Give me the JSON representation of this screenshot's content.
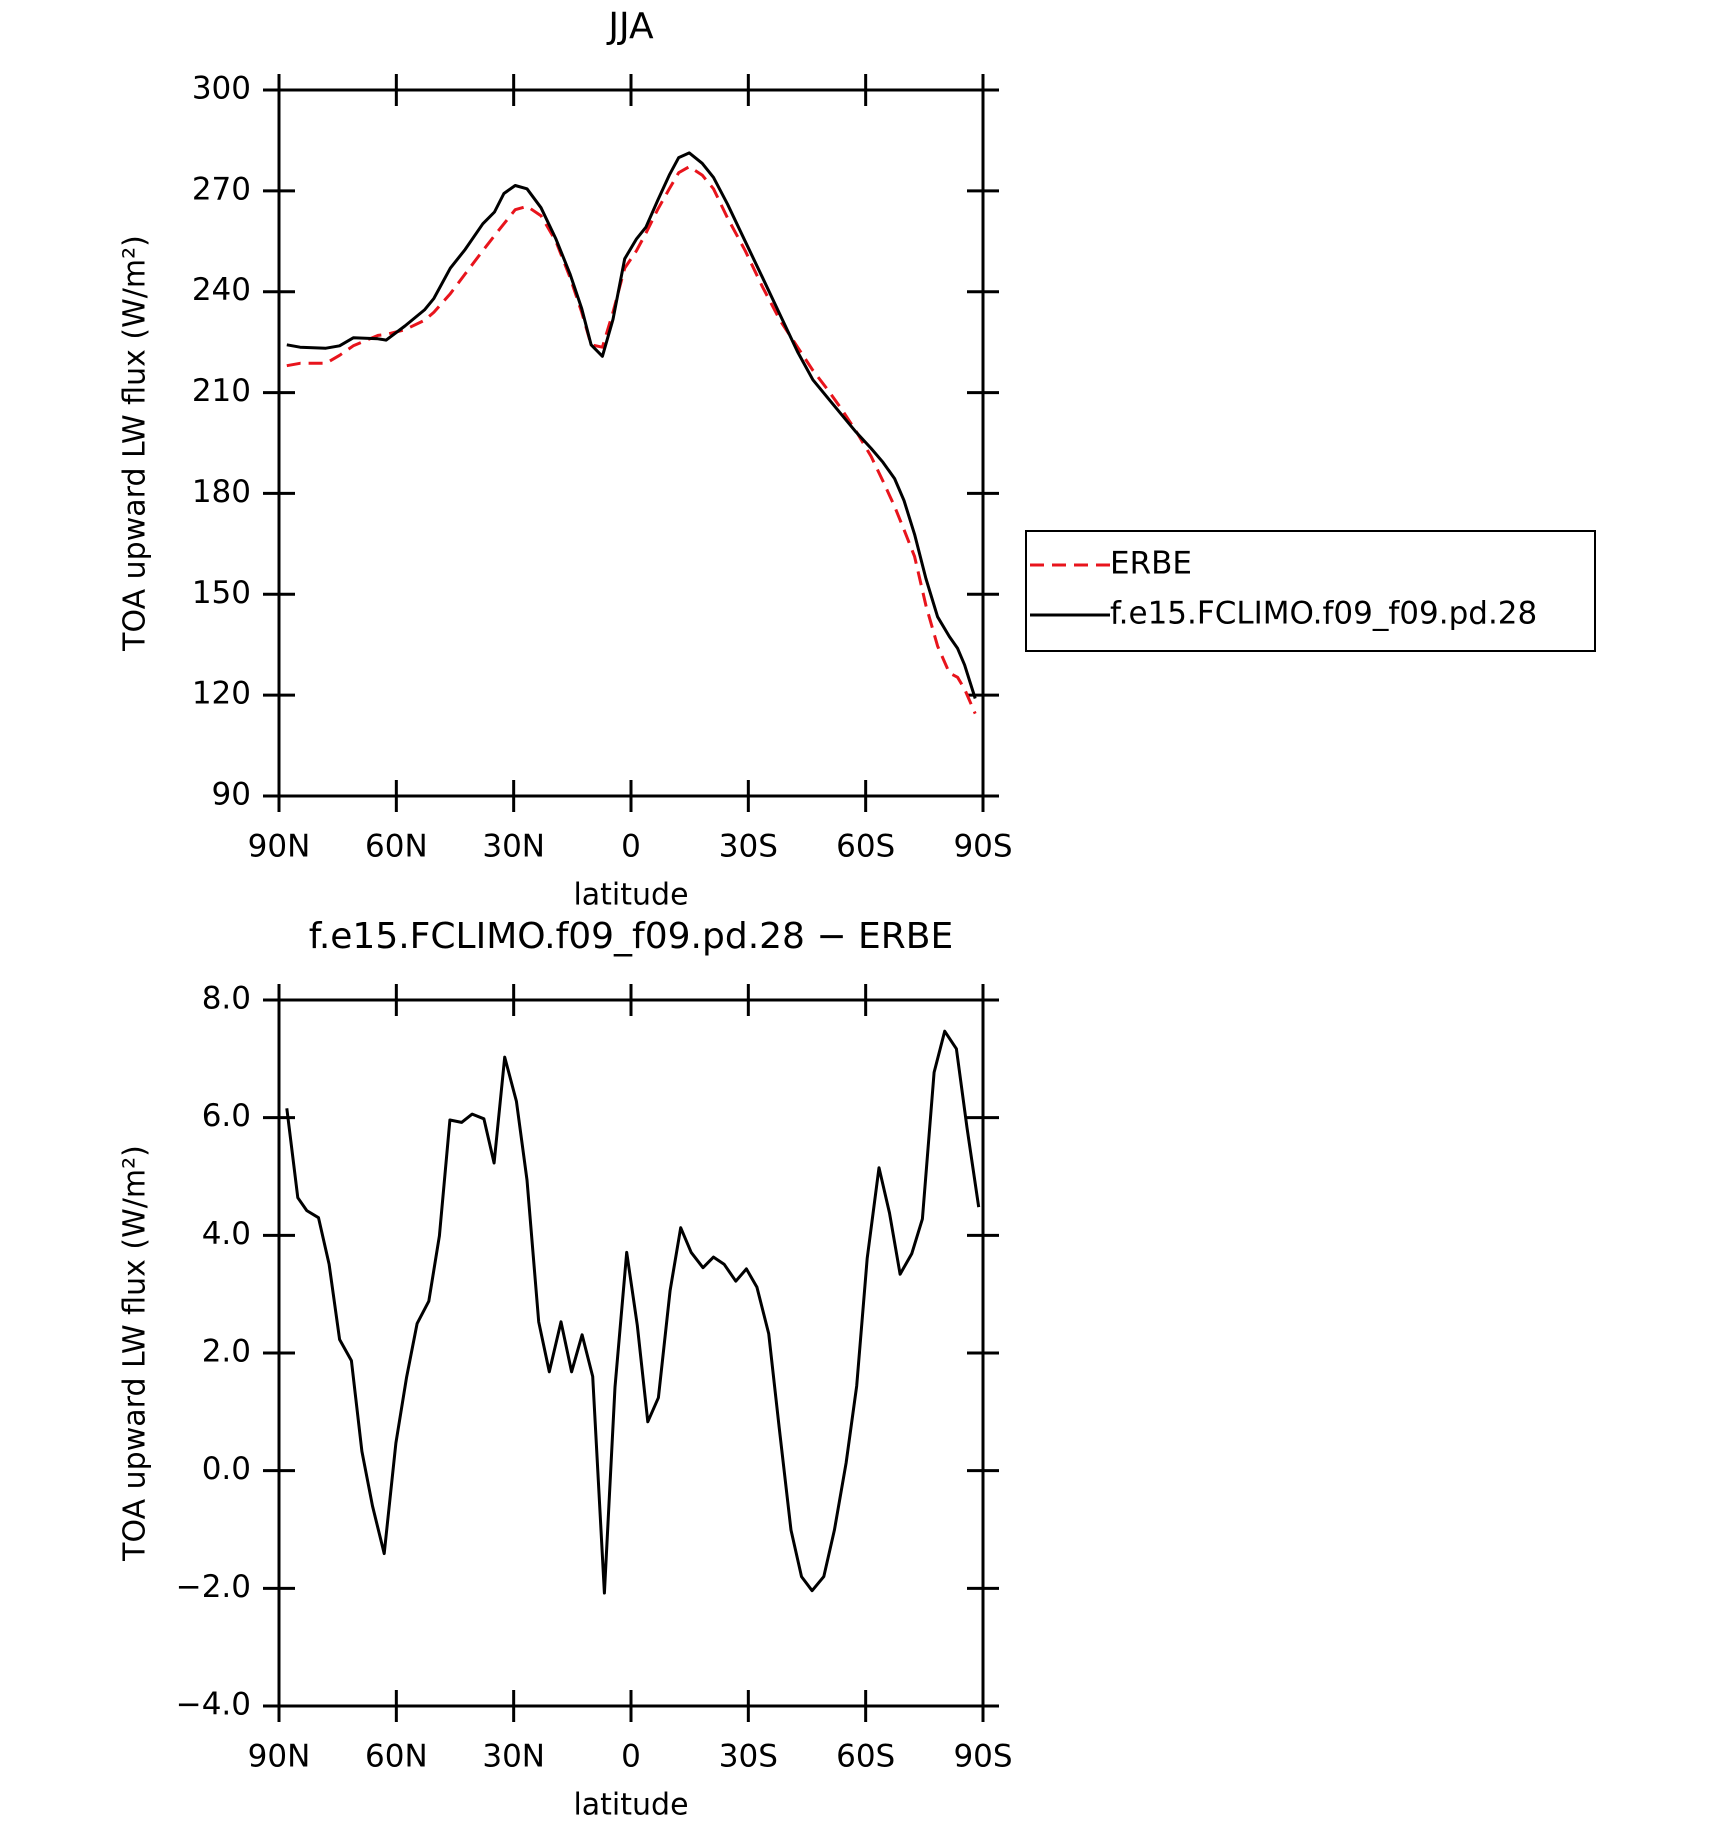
{
  "chart_data": [
    {
      "type": "line",
      "title": "JJA",
      "xlabel": "latitude",
      "ylabel": "TOA upward LW flux (W/m²)",
      "x": [
        88,
        84.6,
        78,
        74.5,
        71,
        64.7,
        62.6,
        57.8,
        52.8,
        50.4,
        46.2,
        42.4,
        37.9,
        34.9,
        32.5,
        29.6,
        26.6,
        23,
        19.2,
        15.6,
        12.6,
        10.2,
        7.3,
        4.6,
        1.6,
        -1.4,
        -3.8,
        -6.8,
        -9.8,
        -12.2,
        -14.9,
        -18.2,
        -21.1,
        -24.7,
        -29.2,
        -33.6,
        -38.1,
        -42.6,
        -46.5,
        -50.4,
        -53.6,
        -57.5,
        -61.4,
        -64.4,
        -67.4,
        -69.8,
        -72.5,
        -75.4,
        -78.4,
        -81.4,
        -83.5,
        -85.3,
        -88
      ],
      "series": [
        {
          "name": "ERBE",
          "color": "#e8141c",
          "linestyle": "dashed",
          "values": [
            218,
            218.7,
            218.7,
            221.1,
            223.9,
            227,
            227.3,
            228.7,
            231.5,
            233.9,
            239.4,
            245.3,
            252.2,
            256.7,
            260.2,
            264.4,
            265.4,
            262.6,
            255,
            244.3,
            233.9,
            224.2,
            223.5,
            233.9,
            247,
            252.2,
            257.4,
            264.4,
            270.6,
            275.4,
            277.2,
            274.7,
            270.6,
            261.9,
            252.2,
            241.5,
            231.5,
            223.5,
            216.6,
            210.7,
            205.5,
            198.6,
            191,
            183.7,
            176.1,
            169.2,
            161.2,
            146.7,
            134.6,
            126.6,
            125.3,
            121.8,
            114.5
          ]
        },
        {
          "name": "f.e15.FCLIMO.f09_f09.pd.28",
          "color": "#000000",
          "linestyle": "solid",
          "values": [
            224.2,
            223.5,
            223.2,
            223.9,
            226.3,
            226,
            225.6,
            229.8,
            234.6,
            238,
            247,
            252.6,
            260.2,
            263.7,
            269.2,
            271.6,
            270.6,
            265,
            255.7,
            245.3,
            235,
            224.2,
            220.8,
            231.8,
            249.8,
            255.7,
            259.2,
            267.1,
            274.7,
            279.9,
            281.3,
            278.2,
            274,
            266,
            255,
            244.3,
            233.2,
            222.1,
            213.8,
            208.3,
            203.8,
            198.3,
            193.4,
            189.3,
            184.4,
            177.9,
            167.8,
            154.7,
            143.3,
            137.4,
            133.9,
            129,
            119
          ]
        }
      ],
      "xlim": [
        90,
        -90
      ],
      "xticks": [
        {
          "value": 90,
          "label": "90N"
        },
        {
          "value": 60,
          "label": "60N"
        },
        {
          "value": 30,
          "label": "30N"
        },
        0,
        {
          "value": -30,
          "label": "30S"
        },
        {
          "value": -60,
          "label": "60S"
        },
        {
          "value": -90,
          "label": "90S"
        }
      ],
      "ylim": [
        90,
        300
      ],
      "yticks": [
        90,
        120,
        150,
        180,
        210,
        240,
        270,
        300
      ],
      "legend": "right"
    },
    {
      "type": "line",
      "title": "f.e15.FCLIMO.f09_f09.pd.28 − ERBE",
      "xlabel": "latitude",
      "ylabel": "TOA upward LW flux (W/m²)",
      "x": [
        88,
        85.2,
        82.9,
        79.9,
        77.2,
        74.5,
        71.5,
        68.8,
        66.1,
        63.1,
        60.1,
        57.4,
        54.7,
        51.7,
        49,
        46.3,
        43.3,
        40.6,
        37.6,
        35,
        32.3,
        29.3,
        26.6,
        23.6,
        20.9,
        17.9,
        15.2,
        12.5,
        9.8,
        6.8,
        4.1,
        1.1,
        -1.6,
        -4.3,
        -7,
        -10,
        -12.7,
        -15.4,
        -18.4,
        -21.1,
        -23.8,
        -26.8,
        -29.5,
        -32.2,
        -35.2,
        -37.9,
        -40.9,
        -43.6,
        -46.3,
        -49.3,
        -52,
        -55,
        -57.7,
        -60.4,
        -63.4,
        -66.1,
        -68.8,
        -71.8,
        -74.5,
        -77.5,
        -80.2,
        -83.2,
        -85.9,
        -88.9
      ],
      "values": [
        6.16,
        4.64,
        4.42,
        4.3,
        3.51,
        2.23,
        1.87,
        0.33,
        -0.6,
        -1.41,
        0.47,
        1.58,
        2.5,
        2.88,
        3.99,
        5.96,
        5.92,
        6.06,
        5.98,
        5.23,
        7.03,
        6.28,
        4.94,
        2.53,
        1.68,
        2.53,
        1.68,
        2.31,
        1.6,
        -2.08,
        1.42,
        3.71,
        2.47,
        0.83,
        1.24,
        3.06,
        4.13,
        3.71,
        3.45,
        3.63,
        3.51,
        3.22,
        3.43,
        3.12,
        2.33,
        0.73,
        -1.01,
        -1.8,
        -2.04,
        -1.8,
        -1.01,
        0.13,
        1.44,
        3.61,
        5.15,
        4.38,
        3.34,
        3.69,
        4.28,
        6.77,
        7.47,
        7.17,
        5.83,
        4.48
      ],
      "color": "#000000",
      "linestyle": "solid",
      "xlim": [
        90,
        -90
      ],
      "xticks": [
        {
          "value": 90,
          "label": "90N"
        },
        {
          "value": 60,
          "label": "60N"
        },
        {
          "value": 30,
          "label": "30N"
        },
        0,
        {
          "value": -30,
          "label": "30S"
        },
        {
          "value": -60,
          "label": "60S"
        },
        {
          "value": -90,
          "label": "90S"
        }
      ],
      "ylim": [
        -4,
        8
      ],
      "yticks": [
        {
          "value": -4,
          "label": "−4.0"
        },
        {
          "value": -2,
          "label": "−2.0"
        },
        {
          "value": 0,
          "label": "0.0"
        },
        {
          "value": 2,
          "label": "2.0"
        },
        {
          "value": 4,
          "label": "4.0"
        },
        {
          "value": 6,
          "label": "6.0"
        },
        {
          "value": 8,
          "label": "8.0"
        }
      ]
    }
  ]
}
